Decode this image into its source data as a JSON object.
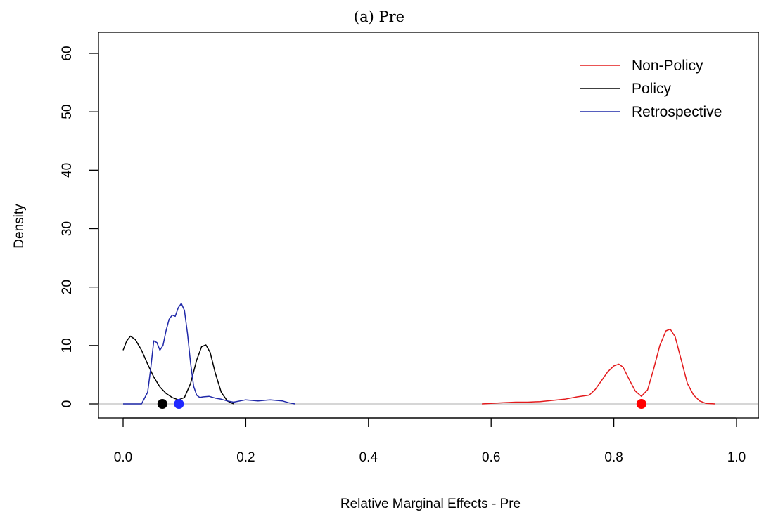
{
  "chart_data": {
    "type": "line",
    "title": "(a) Pre",
    "xlabel": "Relative Marginal Effects - Pre",
    "ylabel": "Density",
    "xlim": [
      0.0,
      1.0
    ],
    "ylim": [
      0,
      60
    ],
    "x_ticks": [
      "0.0",
      "0.2",
      "0.4",
      "0.6",
      "0.8",
      "1.0"
    ],
    "y_ticks": [
      "0",
      "10",
      "20",
      "30",
      "40",
      "50",
      "60"
    ],
    "grid": false,
    "reference_line_y": 0,
    "reference_line_color": "#bebebe",
    "legend_position": "top-right",
    "series": [
      {
        "name": "Non-Policy",
        "color": "#e31a1c",
        "x": [
          0.585,
          0.6,
          0.62,
          0.64,
          0.66,
          0.68,
          0.7,
          0.72,
          0.74,
          0.76,
          0.77,
          0.78,
          0.79,
          0.8,
          0.808,
          0.815,
          0.825,
          0.835,
          0.845,
          0.855,
          0.865,
          0.875,
          0.885,
          0.892,
          0.9,
          0.91,
          0.92,
          0.93,
          0.94,
          0.95,
          0.965
        ],
        "y": [
          0.0,
          0.1,
          0.2,
          0.3,
          0.3,
          0.4,
          0.6,
          0.8,
          1.2,
          1.5,
          2.5,
          4.0,
          5.5,
          6.5,
          6.8,
          6.3,
          4.2,
          2.2,
          1.3,
          2.4,
          6.0,
          10.0,
          12.5,
          12.8,
          11.5,
          7.5,
          3.5,
          1.5,
          0.5,
          0.1,
          0.0
        ]
      },
      {
        "name": "Policy",
        "color": "#000000",
        "x": [
          0.0,
          0.006,
          0.012,
          0.02,
          0.03,
          0.04,
          0.05,
          0.06,
          0.07,
          0.08,
          0.09,
          0.1,
          0.11,
          0.12,
          0.128,
          0.135,
          0.142,
          0.15,
          0.16,
          0.17,
          0.18
        ],
        "y": [
          9.2,
          10.8,
          11.6,
          11.0,
          9.2,
          6.8,
          4.6,
          2.9,
          1.8,
          1.1,
          0.7,
          1.1,
          3.5,
          7.5,
          9.8,
          10.1,
          8.8,
          5.4,
          2.0,
          0.5,
          0.0
        ]
      },
      {
        "name": "Retrospective",
        "color": "#1f28a8",
        "x": [
          0.0,
          0.03,
          0.04,
          0.045,
          0.05,
          0.055,
          0.06,
          0.065,
          0.07,
          0.075,
          0.08,
          0.085,
          0.09,
          0.095,
          0.1,
          0.105,
          0.11,
          0.115,
          0.12,
          0.125,
          0.13,
          0.14,
          0.15,
          0.16,
          0.17,
          0.18,
          0.2,
          0.22,
          0.24,
          0.26,
          0.27,
          0.28
        ],
        "y": [
          0.0,
          0.0,
          2.0,
          6.0,
          10.8,
          10.5,
          9.2,
          10.0,
          12.5,
          14.5,
          15.2,
          15.0,
          16.5,
          17.2,
          16.0,
          12.0,
          7.0,
          3.0,
          1.5,
          1.1,
          1.2,
          1.3,
          1.0,
          0.8,
          0.5,
          0.3,
          0.7,
          0.5,
          0.7,
          0.5,
          0.2,
          0.0
        ]
      }
    ],
    "points": [
      {
        "series": "Policy",
        "x": 0.064,
        "y": 0,
        "color": "#000000"
      },
      {
        "series": "Retrospective",
        "x": 0.091,
        "y": 0,
        "color": "#1f28ff"
      },
      {
        "series": "Non-Policy",
        "x": 0.845,
        "y": 0,
        "color": "#ff0000"
      }
    ]
  }
}
